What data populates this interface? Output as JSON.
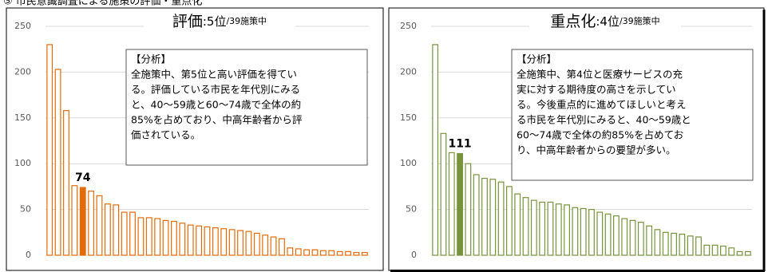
{
  "header": "⑤ 市民意識調査による施策の評価・重点化",
  "chart_data": [
    {
      "type": "bar",
      "title": "評価",
      "title_rank": ":5位",
      "subtitle": "/39施策中",
      "values": [
        230,
        203,
        158,
        76,
        74,
        70,
        65,
        56,
        55,
        47,
        47,
        41,
        41,
        40,
        38,
        37,
        35,
        33,
        32,
        31,
        30,
        29,
        28,
        27,
        26,
        24,
        22,
        20,
        18,
        8,
        7,
        6,
        6,
        5,
        5,
        4,
        4,
        3,
        3
      ],
      "color": "#e36c0a",
      "highlight": 4,
      "ylim": [
        0,
        250
      ],
      "yticks": [
        0,
        50,
        100,
        150,
        200,
        250
      ],
      "grid": true,
      "annotation": {
        "heading": "【分析】",
        "lines": [
          "全施策中、第5位と高い評価を得てい",
          "る。評価している市民を年代別にみる",
          "と、40～59歳と60～74歳で全体の約",
          "85%を占めており、中高年齢者から評",
          "価されている。"
        ]
      }
    },
    {
      "type": "bar",
      "title": "重点化",
      "title_rank": ":4位",
      "subtitle": "/39施策中",
      "values": [
        230,
        133,
        112,
        111,
        100,
        88,
        84,
        83,
        80,
        75,
        67,
        63,
        60,
        58,
        58,
        56,
        55,
        52,
        51,
        50,
        47,
        45,
        43,
        40,
        38,
        36,
        32,
        28,
        25,
        24,
        23,
        21,
        20,
        11,
        11,
        10,
        8,
        4,
        4
      ],
      "color": "#77933c",
      "highlight": 3,
      "ylim": [
        0,
        250
      ],
      "yticks": [
        0,
        50,
        100,
        150,
        200,
        250
      ],
      "grid": true,
      "annotation": {
        "heading": "【分析】",
        "lines": [
          "全施策中、第4位と医療サービスの充",
          "実に対する期待度の高さを示してい",
          "る。今後重点的に進めてほしいと考え",
          "る市民を年代別にみると、40～59歳と",
          "60～74歳で全体の約85%を占めてお",
          "り、中高年齢者からの要望が多い。"
        ]
      }
    }
  ]
}
